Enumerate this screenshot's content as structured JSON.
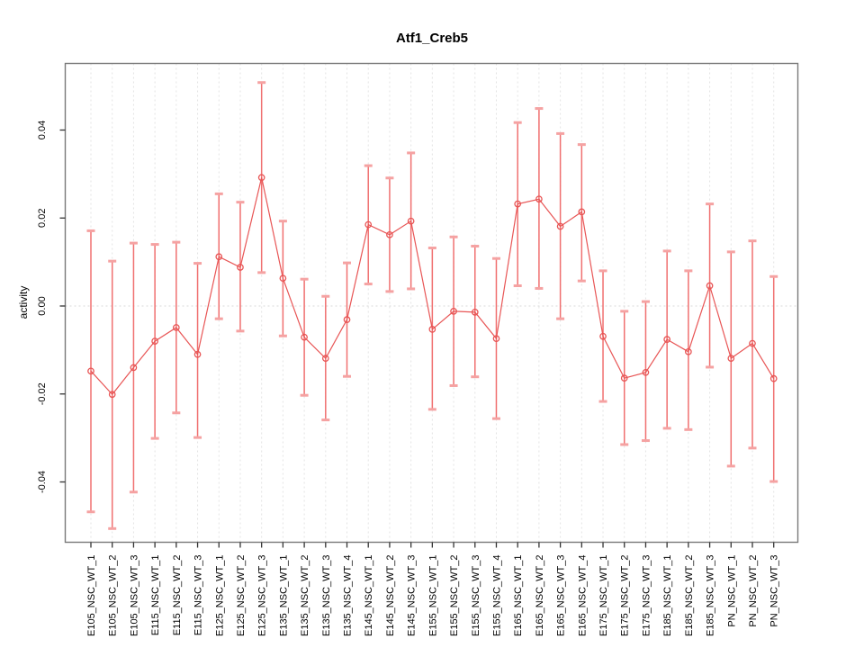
{
  "chart_data": {
    "type": "scatter",
    "subtype": "points_with_error_bars_connected_by_line",
    "title": "Atf1_Creb5",
    "xlabel": "",
    "ylabel": "activity",
    "ylim": [
      -0.055,
      0.056
    ],
    "yticks": [
      -0.04,
      -0.02,
      0.0,
      0.02,
      0.04
    ],
    "ytick_labels": [
      "-0.04",
      "-0.02",
      "0.00",
      "0.02",
      "0.04"
    ],
    "grid": {
      "vertical_dotted_per_category": true,
      "horizontal_dotted_zero_line": true
    },
    "legend": "none",
    "colors": {
      "series": "#e85555",
      "errorbar_line": "#f07070",
      "errorbar_cap": "#f5a2a2",
      "gridline": "#e3e3e3",
      "zero_line": "#d9d9d9",
      "box_border": "#7a7a7a",
      "tick": "#333333"
    },
    "categories": [
      "E105_NSC_WT_1",
      "E105_NSC_WT_2",
      "E105_NSC_WT_3",
      "E115_NSC_WT_1",
      "E115_NSC_WT_2",
      "E115_NSC_WT_3",
      "E125_NSC_WT_1",
      "E125_NSC_WT_2",
      "E125_NSC_WT_3",
      "E135_NSC_WT_1",
      "E135_NSC_WT_2",
      "E135_NSC_WT_3",
      "E135_NSC_WT_4",
      "E145_NSC_WT_1",
      "E145_NSC_WT_2",
      "E145_NSC_WT_3",
      "E155_NSC_WT_1",
      "E155_NSC_WT_2",
      "E155_NSC_WT_3",
      "E155_NSC_WT_4",
      "E165_NSC_WT_1",
      "E165_NSC_WT_2",
      "E165_NSC_WT_3",
      "E165_NSC_WT_4",
      "E175_NSC_WT_1",
      "E175_NSC_WT_2",
      "E175_NSC_WT_3",
      "E185_NSC_WT_1",
      "E185_NSC_WT_2",
      "E185_NSC_WT_3",
      "PN_NSC_WT_1",
      "PN_NSC_WT_2",
      "PN_NSC_WT_3"
    ],
    "values": [
      -0.0148,
      -0.0201,
      -0.014,
      -0.008,
      -0.0049,
      -0.011,
      0.0112,
      0.0088,
      0.0292,
      0.0063,
      -0.0071,
      -0.0119,
      -0.0031,
      0.0185,
      0.0162,
      0.0193,
      -0.0053,
      -0.0012,
      -0.0014,
      -0.0074,
      0.0232,
      0.0243,
      0.0181,
      0.0214,
      -0.0069,
      -0.0164,
      -0.0151,
      -0.0076,
      -0.0104,
      0.0046,
      -0.0119,
      -0.0085,
      -0.0165
    ],
    "lower": [
      -0.0468,
      -0.0506,
      -0.0423,
      -0.0301,
      -0.0243,
      -0.0299,
      -0.0029,
      -0.0057,
      0.0076,
      -0.0068,
      -0.0203,
      -0.0259,
      -0.016,
      0.005,
      0.0033,
      0.0039,
      -0.0235,
      -0.0181,
      -0.0161,
      -0.0256,
      0.0046,
      0.004,
      -0.0029,
      0.0057,
      -0.0217,
      -0.0315,
      -0.0306,
      -0.0278,
      -0.0281,
      -0.0139,
      -0.0364,
      -0.0323,
      -0.0399
    ],
    "upper": [
      0.0171,
      0.0102,
      0.0143,
      0.014,
      0.0145,
      0.0097,
      0.0255,
      0.0236,
      0.0508,
      0.0193,
      0.0061,
      0.0022,
      0.0098,
      0.0319,
      0.0291,
      0.0348,
      0.0132,
      0.0157,
      0.0136,
      0.0108,
      0.0417,
      0.0449,
      0.0392,
      0.0367,
      0.008,
      -0.0012,
      0.001,
      0.0125,
      0.008,
      0.0232,
      0.0123,
      0.0148,
      0.0067
    ]
  }
}
